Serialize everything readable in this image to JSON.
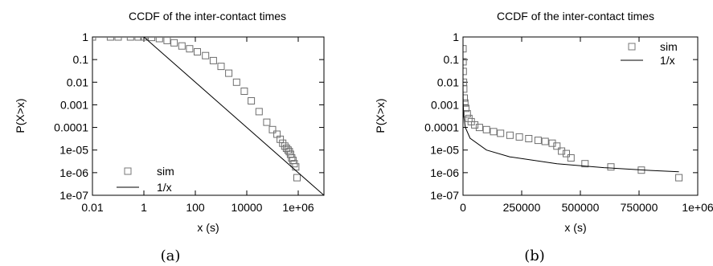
{
  "chart_data": [
    {
      "type": "scatter",
      "title": "CCDF of the inter-contact times",
      "xlabel": "x (s)",
      "ylabel": "P(X>x)",
      "caption": "(a)",
      "xscale": "log",
      "yscale": "log",
      "xlim": [
        0.01,
        10000000
      ],
      "ylim": [
        1e-07,
        1
      ],
      "xticks": [
        "0.01",
        "1",
        "100",
        "10000",
        "1e+06"
      ],
      "xtick_values": [
        0.01,
        1,
        100,
        10000,
        1000000
      ],
      "yticks": [
        "1",
        "0.1",
        "0.01",
        "0.001",
        "0.0001",
        "1e-05",
        "1e-06",
        "1e-07"
      ],
      "ytick_values": [
        1,
        0.1,
        0.01,
        0.001,
        0.0001,
        1e-05,
        1e-06,
        1e-07
      ],
      "legend_position": "bottom-left",
      "grid": false,
      "series": [
        {
          "name": "sim",
          "style": "open-square",
          "x": [
            0.01,
            0.05,
            0.1,
            0.3,
            0.6,
            1,
            2,
            4,
            8,
            15,
            30,
            60,
            120,
            250,
            500,
            1000,
            2000,
            4000,
            8000,
            15000,
            30000,
            60000,
            100000,
            150000,
            200000,
            250000,
            300000,
            350000,
            400000,
            450000,
            500000,
            560000,
            620000,
            700000,
            800000,
            900000
          ],
          "y": [
            1,
            1,
            1,
            1,
            1,
            1,
            0.95,
            0.85,
            0.7,
            0.55,
            0.4,
            0.3,
            0.22,
            0.15,
            0.09,
            0.05,
            0.025,
            0.01,
            0.004,
            0.0015,
            0.0005,
            0.00017,
            8e-05,
            5e-05,
            3e-05,
            2e-05,
            1.5e-05,
            1.2e-05,
            1e-05,
            8.5e-06,
            6.5e-06,
            4.5e-06,
            3.5e-06,
            2.5e-06,
            1.8e-06,
            6e-07
          ]
        },
        {
          "name": "1/x",
          "style": "line",
          "x": [
            1,
            10000000
          ],
          "y": [
            1,
            1e-07
          ]
        }
      ]
    },
    {
      "type": "scatter",
      "title": "CCDF of the inter-contact times",
      "xlabel": "x (s)",
      "ylabel": "P(X>x)",
      "caption": "(b)",
      "xscale": "linear",
      "yscale": "log",
      "xlim": [
        0,
        1000000
      ],
      "ylim": [
        1e-07,
        1
      ],
      "xticks": [
        "0",
        "250000",
        "500000",
        "750000",
        "1e+06"
      ],
      "xtick_values": [
        0,
        250000,
        500000,
        750000,
        1000000
      ],
      "yticks": [
        "1",
        "0.1",
        "0.01",
        "0.001",
        "0.0001",
        "1e-05",
        "1e-06",
        "1e-07"
      ],
      "ytick_values": [
        1,
        0.1,
        0.01,
        0.001,
        0.0001,
        1e-05,
        1e-06,
        1e-07
      ],
      "legend_position": "top-right",
      "grid": false,
      "series": [
        {
          "name": "sim",
          "style": "open-square",
          "x": [
            100,
            500,
            1000,
            2000,
            3000,
            5000,
            8000,
            12000,
            18000,
            25000,
            35000,
            50000,
            70000,
            100000,
            130000,
            160000,
            200000,
            240000,
            280000,
            320000,
            350000,
            380000,
            400000,
            420000,
            440000,
            460000,
            520000,
            630000,
            760000,
            920000
          ],
          "y": [
            0.3,
            0.08,
            0.03,
            0.01,
            0.005,
            0.002,
            0.0012,
            0.0007,
            0.0004,
            0.00025,
            0.00018,
            0.00013,
            0.0001,
            8e-05,
            6.5e-05,
            5.5e-05,
            4.5e-05,
            3.8e-05,
            3.2e-05,
            2.7e-05,
            2.4e-05,
            2e-05,
            1.5e-05,
            9e-06,
            7e-06,
            4.5e-06,
            2.5e-06,
            1.8e-06,
            1.3e-06,
            6e-07
          ]
        },
        {
          "name": "1/x",
          "style": "line",
          "x": [
            1,
            3,
            10,
            30,
            100,
            300,
            1000,
            3000,
            10000,
            30000,
            100000,
            200000,
            400000,
            600000,
            800000,
            920000
          ],
          "y": [
            1,
            0.333,
            0.1,
            0.0333,
            0.01,
            0.00333,
            0.001,
            0.000333,
            0.0001,
            3.33e-05,
            1e-05,
            5e-06,
            2.5e-06,
            1.67e-06,
            1.25e-06,
            1.09e-06
          ]
        }
      ]
    }
  ]
}
